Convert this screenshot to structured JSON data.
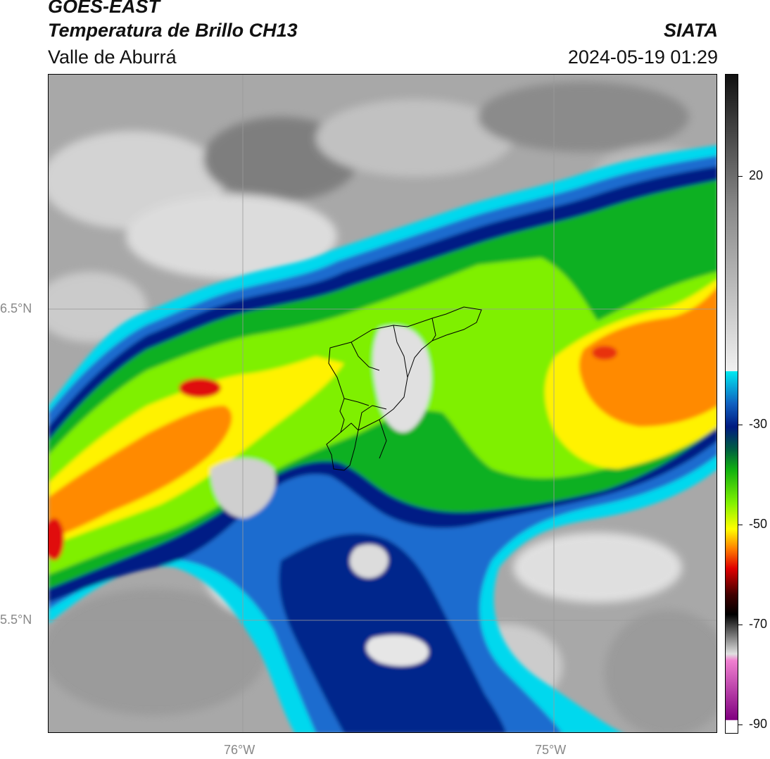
{
  "header": {
    "satellite": "GOES-EAST",
    "product": "Temperatura de Brillo CH13",
    "region": "Valle de Aburrá",
    "organization": "SIATA",
    "datetime": "2024-05-19 01:29"
  },
  "map": {
    "lat_labels": [
      "6.5°N",
      "5.5°N"
    ],
    "lon_labels": [
      "76°W",
      "75°W"
    ],
    "grid_color": "#9a9a9a",
    "boundary_color": "#000000"
  },
  "colorbar": {
    "ticks": [
      "20",
      "-30",
      "-50",
      "-70",
      "-90"
    ],
    "colors": {
      "warm_gray_light": "#f0f0f0",
      "warm_gray_dark": "#1a1a1a",
      "cyan": "#00e8f0",
      "blue": "#1060c0",
      "navy": "#001a80",
      "green": "#10b010",
      "lime": "#80f000",
      "yellow": "#ffff00",
      "orange": "#ff8000",
      "red": "#e00000",
      "dark_red": "#400000",
      "pink": "#f080d0",
      "purple": "#800080"
    }
  }
}
